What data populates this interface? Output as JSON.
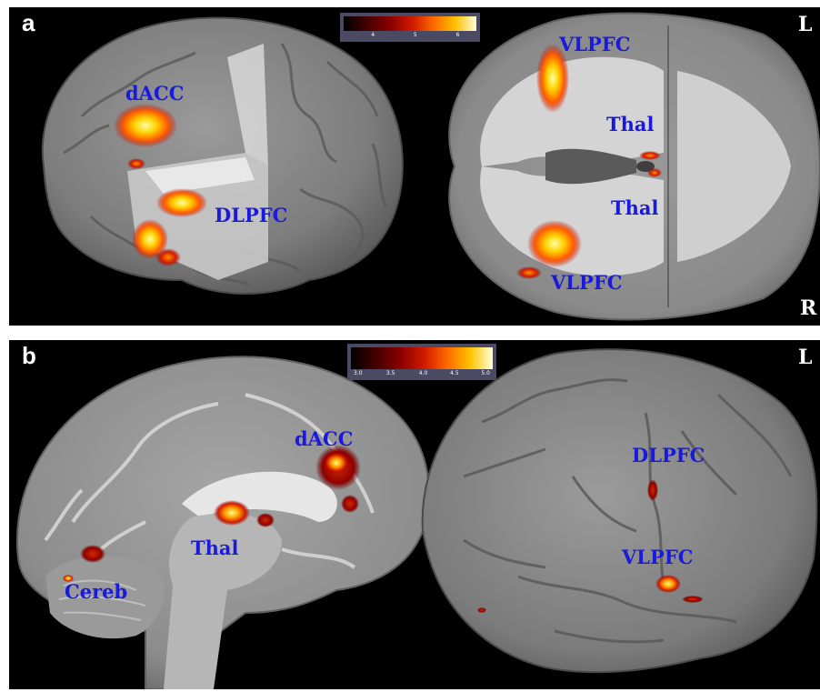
{
  "panels": [
    {
      "letter": "a",
      "side_labels": {
        "top": "L",
        "bottom": "R"
      },
      "colorbar": {
        "ticks": [
          "4",
          "5",
          "6"
        ],
        "colors": [
          "#000000",
          "#8a0000",
          "#ff6a00",
          "#ffffd8"
        ]
      },
      "regions": [
        "dACC",
        "DLPFC",
        "VLPFC",
        "Thal",
        "Thal",
        "VLPFC"
      ]
    },
    {
      "letter": "b",
      "side_labels": {
        "top": "L"
      },
      "colorbar": {
        "ticks": [
          "3.0",
          "3.5",
          "4.0",
          "4.5",
          "5.0"
        ],
        "colors": [
          "#000000",
          "#8a0000",
          "#ff6a00",
          "#ffffd8"
        ]
      },
      "regions": [
        "dACC",
        "Thal",
        "Cereb",
        "DLPFC",
        "VLPFC"
      ]
    }
  ],
  "colors": {
    "background": "#000000",
    "label": "#1a1adc",
    "activation_hot": "#ffff80",
    "activation_cool": "#b00000"
  }
}
